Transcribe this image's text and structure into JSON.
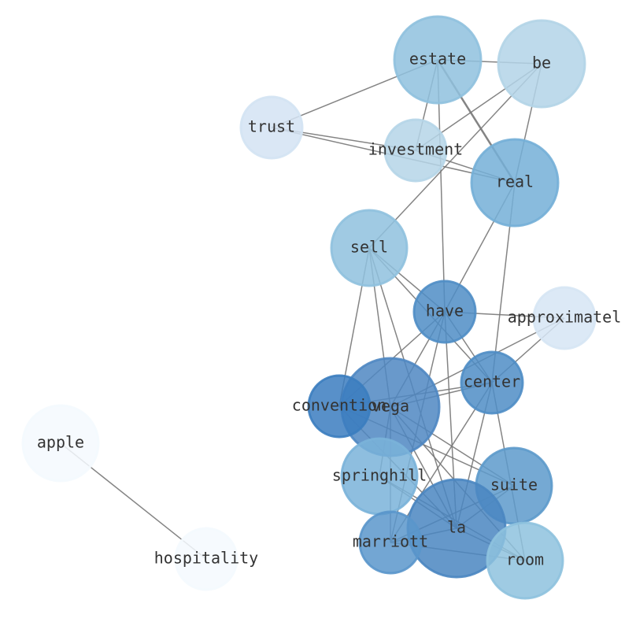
{
  "nodes": [
    {
      "label": "estate"
    },
    {
      "label": "be"
    },
    {
      "label": "trust"
    },
    {
      "label": "investment"
    },
    {
      "label": "real"
    },
    {
      "label": "sell"
    },
    {
      "label": "have"
    },
    {
      "label": "approximatel"
    },
    {
      "label": "center"
    },
    {
      "label": "vega"
    },
    {
      "label": "convention"
    },
    {
      "label": "apple"
    },
    {
      "label": "springhill"
    },
    {
      "label": "suite"
    },
    {
      "label": "la"
    },
    {
      "label": "marriott"
    },
    {
      "label": "hospitality"
    },
    {
      "label": "room"
    }
  ]
}
